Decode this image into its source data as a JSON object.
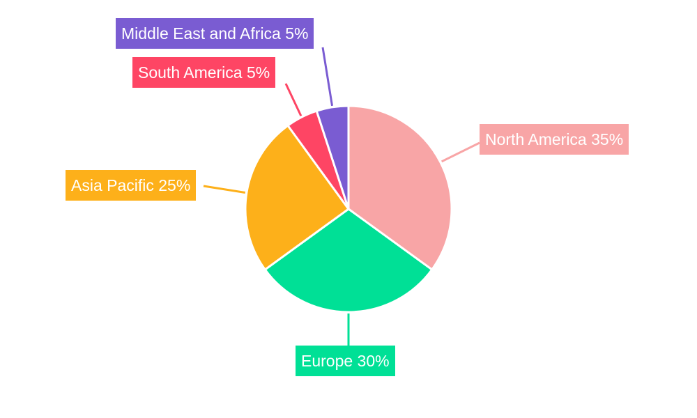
{
  "chart_data": {
    "type": "pie",
    "categories": [
      "North America",
      "Europe",
      "Asia Pacific",
      "South America",
      "Middle East and Africa"
    ],
    "values": [
      35,
      30,
      25,
      5,
      5
    ],
    "labels": [
      "North America 35%",
      "Europe 30%",
      "Asia Pacific 25%",
      "South America 5%",
      "Middle East and Africa 5%"
    ],
    "colors": [
      "#f8a5a6",
      "#00e096",
      "#fdb01a",
      "#fe4564",
      "#7a5cd2"
    ],
    "start_angle": "top",
    "direction": "clockwise",
    "legend": "none"
  }
}
